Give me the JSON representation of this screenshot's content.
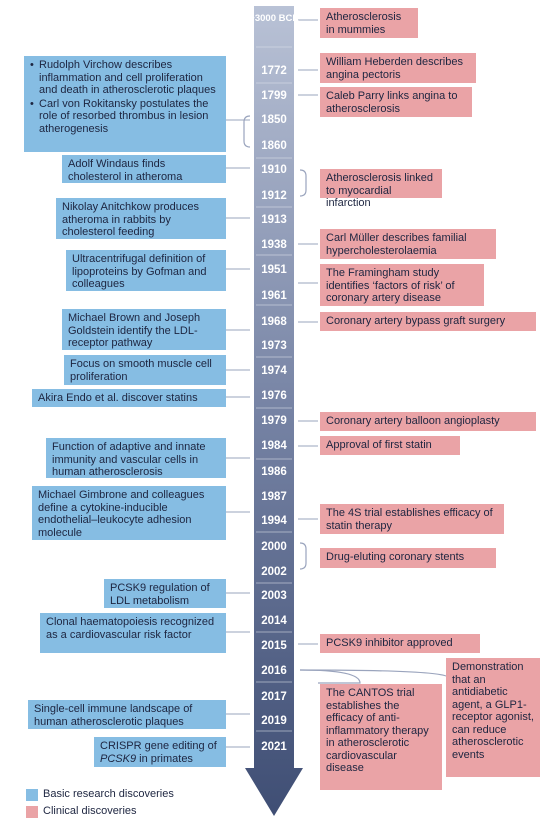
{
  "years": [
    "~3000 BCE",
    "1772",
    "1799",
    "1850",
    "1860",
    "1910",
    "1912",
    "1913",
    "1938",
    "1951",
    "1961",
    "1968",
    "1973",
    "1974",
    "1976",
    "1979",
    "1984",
    "1986",
    "1987",
    "1994",
    "2000",
    "2002",
    "2003",
    "2014",
    "2015",
    "2016",
    "2017",
    "2019",
    "2021"
  ],
  "basic": {
    "virchow": "Rudolph Virchow describes inflammation and cell proliferation and death in atherosclerotic plaques",
    "rokitansky": "Carl von Rokitansky postulates the role of resorbed thrombus in lesion atherogenesis",
    "windaus": "Adolf Windaus finds cholesterol in atheroma",
    "anitchkow": "Nikolay Anitchkow produces atheroma in rabbits by cholesterol feeding",
    "gofman": "Ultracentrifugal definition of lipoproteins by Gofman and colleagues",
    "brown": "Michael Brown and Joseph Goldstein identify the LDL-receptor pathway",
    "smooth": "Focus on smooth muscle cell proliferation",
    "endo": "Akira Endo et al. discover statins",
    "immunity": "Function of adaptive and innate immunity and vascular cells in human atherosclerosis",
    "gimbrone": "Michael Gimbrone and colleagues define a cytokine-inducible endothelial–leukocyte adhesion molecule",
    "pcsk9reg": "PCSK9 regulation of LDL metabolism",
    "clonal": "Clonal haematopoiesis recognized as a cardiovascular risk factor",
    "singlecell": "Single-cell immune landscape of human atherosclerotic plaques",
    "crispr_pre": "CRISPR gene editing of ",
    "crispr_em": "PCSK9",
    "crispr_post": " in primates"
  },
  "clinical": {
    "mummies": "Atherosclerosis in mummies",
    "heberden": "William Heberden describes angina pectoris",
    "parry": "Caleb Parry links angina to atherosclerosis",
    "mi": "Atherosclerosis linked to myocardial infarction",
    "muller": "Carl Müller describes familial hypercholesterolaemia",
    "framingham": "The Framingham study identifies ‘factors of risk’ of coronary artery disease",
    "bypass": "Coronary artery bypass graft surgery",
    "balloon": "Coronary artery balloon angioplasty",
    "firststatin": "Approval of first statin",
    "fours": "The 4S trial establishes efficacy of statin therapy",
    "stents": "Drug-eluting coronary stents",
    "pcsk9inh": "PCSK9 inhibitor approved",
    "glp1": "Demonstration that an antidiabetic agent, a GLP1-receptor agonist, can reduce atherosclerotic events",
    "cantos": "The CANTOS trial establishes the efficacy of anti-inflammatory therapy in atherosclerotic cardiovascular disease"
  },
  "legend": {
    "basic": "Basic research discoveries",
    "clinical": "Clinical discoveries"
  },
  "colors": {
    "basic": "#86bde3",
    "clinical": "#eaa3a6",
    "timeline_top": "#b9c2d6",
    "timeline_bottom": "#3f4e74",
    "text": "#1d2540"
  }
}
